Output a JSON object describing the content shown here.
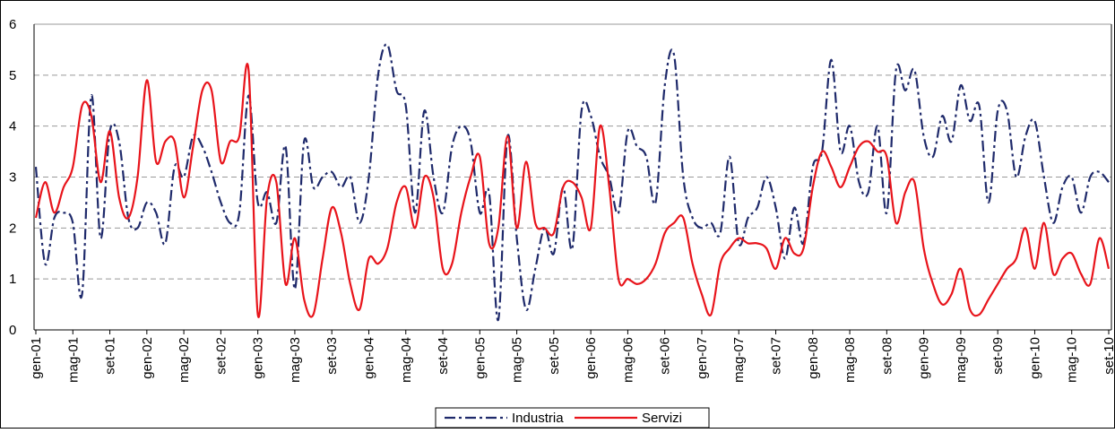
{
  "chart_data": {
    "type": "line",
    "categories": [
      "gen-01",
      null,
      null,
      null,
      "mag-01",
      null,
      null,
      null,
      "set-01",
      null,
      null,
      null,
      "gen-02",
      null,
      null,
      null,
      "mag-02",
      null,
      null,
      null,
      "set-02",
      null,
      null,
      null,
      "gen-03",
      null,
      null,
      null,
      "mag-03",
      null,
      null,
      null,
      "set-03",
      null,
      null,
      null,
      "gen-04",
      null,
      null,
      null,
      "mag-04",
      null,
      null,
      null,
      "set-04",
      null,
      null,
      null,
      "gen-05",
      null,
      null,
      null,
      "mag-05",
      null,
      null,
      null,
      "set-05",
      null,
      null,
      null,
      "gen-06",
      null,
      null,
      null,
      "mag-06",
      null,
      null,
      null,
      "set-06",
      null,
      null,
      null,
      "gen-07",
      null,
      null,
      null,
      "mag-07",
      null,
      null,
      null,
      "set-07",
      null,
      null,
      null,
      "gen-08",
      null,
      null,
      null,
      "mag-08",
      null,
      null,
      null,
      "set-08",
      null,
      null,
      null,
      "gen-09",
      null,
      null,
      null,
      "mag-09",
      null,
      null,
      null,
      "set-09",
      null,
      null,
      null,
      "gen-10",
      null,
      null,
      null,
      "mag-10",
      null,
      null,
      null,
      "set-10"
    ],
    "series": [
      {
        "name": "Industria",
        "color": "#1f2a6b",
        "dash": "12,4,3,4",
        "values": [
          3.2,
          1.3,
          2.2,
          2.3,
          2.1,
          0.7,
          4.6,
          1.8,
          3.9,
          3.7,
          2.2,
          2.0,
          2.5,
          2.3,
          1.7,
          3.2,
          3.0,
          3.8,
          3.6,
          3.1,
          2.5,
          2.1,
          2.3,
          4.6,
          2.5,
          2.7,
          2.1,
          3.6,
          0.8,
          3.7,
          2.8,
          3.0,
          3.1,
          2.8,
          3.0,
          2.1,
          3.0,
          5.0,
          5.6,
          4.7,
          4.4,
          2.3,
          4.3,
          3.0,
          2.3,
          3.6,
          4.0,
          3.7,
          2.3,
          2.7,
          0.2,
          3.8,
          1.8,
          0.4,
          1.2,
          2.0,
          1.5,
          2.8,
          1.6,
          4.3,
          4.2,
          3.4,
          3.0,
          2.3,
          3.9,
          3.6,
          3.4,
          2.5,
          4.8,
          5.4,
          3.0,
          2.2,
          2.0,
          2.1,
          1.9,
          3.4,
          1.7,
          2.2,
          2.4,
          3.0,
          2.4,
          1.4,
          2.4,
          1.7,
          3.2,
          3.5,
          5.3,
          3.5,
          4.0,
          2.9,
          2.7,
          4.0,
          2.3,
          5.1,
          4.7,
          5.1,
          3.8,
          3.4,
          4.2,
          3.7,
          4.8,
          4.1,
          4.4,
          2.5,
          4.3,
          4.3,
          3.0,
          3.8,
          4.1,
          3.0,
          2.1,
          2.8,
          3.0,
          2.3,
          3.0,
          3.1,
          2.9
        ]
      },
      {
        "name": "Servizi",
        "color": "#e8141b",
        "values": [
          2.2,
          2.9,
          2.3,
          2.8,
          3.2,
          4.4,
          4.2,
          2.9,
          3.9,
          2.6,
          2.2,
          3.0,
          4.9,
          3.3,
          3.7,
          3.7,
          2.6,
          3.6,
          4.7,
          4.7,
          3.3,
          3.7,
          3.8,
          5.1,
          0.3,
          2.6,
          2.9,
          0.9,
          1.8,
          0.6,
          0.3,
          1.4,
          2.4,
          1.9,
          0.9,
          0.4,
          1.4,
          1.3,
          1.6,
          2.5,
          2.8,
          2.0,
          3.0,
          2.6,
          1.2,
          1.3,
          2.3,
          3.0,
          3.4,
          1.7,
          2.0,
          3.8,
          2.0,
          3.3,
          2.1,
          2.0,
          1.9,
          2.8,
          2.9,
          2.6,
          2.0,
          4.0,
          2.8,
          1.0,
          1.0,
          0.9,
          1.0,
          1.3,
          1.9,
          2.1,
          2.2,
          1.3,
          0.7,
          0.3,
          1.3,
          1.6,
          1.8,
          1.7,
          1.7,
          1.6,
          1.2,
          1.8,
          1.5,
          1.6,
          2.8,
          3.5,
          3.2,
          2.8,
          3.2,
          3.6,
          3.7,
          3.5,
          3.4,
          2.1,
          2.7,
          2.9,
          1.6,
          0.9,
          0.5,
          0.7,
          1.2,
          0.4,
          0.3,
          0.6,
          0.9,
          1.2,
          1.4,
          2.0,
          1.2,
          2.1,
          1.1,
          1.4,
          1.5,
          1.1,
          0.9,
          1.8,
          1.2
        ]
      }
    ],
    "ylim": [
      0,
      6
    ],
    "yticks": [
      0,
      1,
      2,
      3,
      4,
      5,
      6
    ],
    "grid": true,
    "legend": "bottom"
  }
}
